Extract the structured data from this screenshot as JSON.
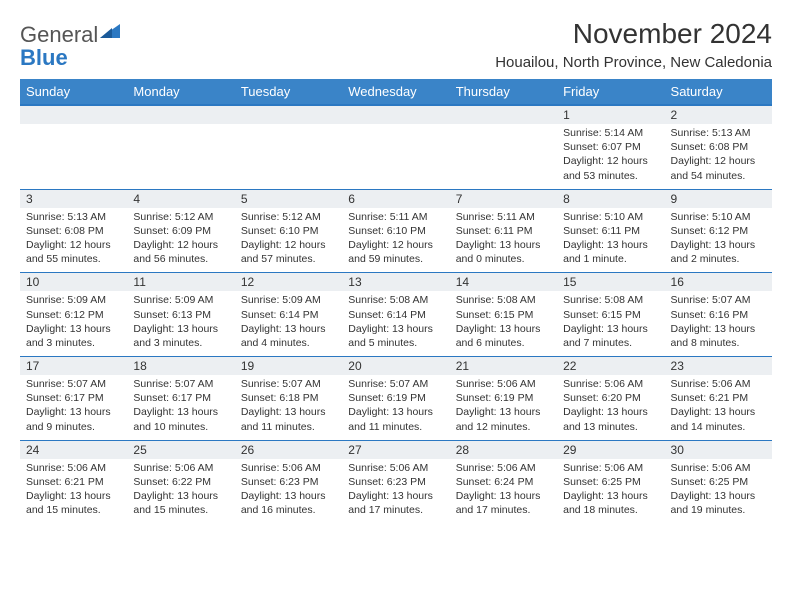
{
  "brand": {
    "name_part1": "General",
    "name_part2": "Blue"
  },
  "title": "November 2024",
  "location": "Houailou, North Province, New Caledonia",
  "colors": {
    "header_bg": "#3a84c8",
    "accent": "#2b78c2",
    "daynum_bg": "#eceff2",
    "text": "#333333",
    "white": "#ffffff"
  },
  "calendar": {
    "type": "table",
    "columns": [
      "Sunday",
      "Monday",
      "Tuesday",
      "Wednesday",
      "Thursday",
      "Friday",
      "Saturday"
    ],
    "weeks": [
      [
        null,
        null,
        null,
        null,
        null,
        {
          "n": "1",
          "sunrise": "5:14 AM",
          "sunset": "6:07 PM",
          "daylight": "12 hours and 53 minutes."
        },
        {
          "n": "2",
          "sunrise": "5:13 AM",
          "sunset": "6:08 PM",
          "daylight": "12 hours and 54 minutes."
        }
      ],
      [
        {
          "n": "3",
          "sunrise": "5:13 AM",
          "sunset": "6:08 PM",
          "daylight": "12 hours and 55 minutes."
        },
        {
          "n": "4",
          "sunrise": "5:12 AM",
          "sunset": "6:09 PM",
          "daylight": "12 hours and 56 minutes."
        },
        {
          "n": "5",
          "sunrise": "5:12 AM",
          "sunset": "6:10 PM",
          "daylight": "12 hours and 57 minutes."
        },
        {
          "n": "6",
          "sunrise": "5:11 AM",
          "sunset": "6:10 PM",
          "daylight": "12 hours and 59 minutes."
        },
        {
          "n": "7",
          "sunrise": "5:11 AM",
          "sunset": "6:11 PM",
          "daylight": "13 hours and 0 minutes."
        },
        {
          "n": "8",
          "sunrise": "5:10 AM",
          "sunset": "6:11 PM",
          "daylight": "13 hours and 1 minute."
        },
        {
          "n": "9",
          "sunrise": "5:10 AM",
          "sunset": "6:12 PM",
          "daylight": "13 hours and 2 minutes."
        }
      ],
      [
        {
          "n": "10",
          "sunrise": "5:09 AM",
          "sunset": "6:12 PM",
          "daylight": "13 hours and 3 minutes."
        },
        {
          "n": "11",
          "sunrise": "5:09 AM",
          "sunset": "6:13 PM",
          "daylight": "13 hours and 3 minutes."
        },
        {
          "n": "12",
          "sunrise": "5:09 AM",
          "sunset": "6:14 PM",
          "daylight": "13 hours and 4 minutes."
        },
        {
          "n": "13",
          "sunrise": "5:08 AM",
          "sunset": "6:14 PM",
          "daylight": "13 hours and 5 minutes."
        },
        {
          "n": "14",
          "sunrise": "5:08 AM",
          "sunset": "6:15 PM",
          "daylight": "13 hours and 6 minutes."
        },
        {
          "n": "15",
          "sunrise": "5:08 AM",
          "sunset": "6:15 PM",
          "daylight": "13 hours and 7 minutes."
        },
        {
          "n": "16",
          "sunrise": "5:07 AM",
          "sunset": "6:16 PM",
          "daylight": "13 hours and 8 minutes."
        }
      ],
      [
        {
          "n": "17",
          "sunrise": "5:07 AM",
          "sunset": "6:17 PM",
          "daylight": "13 hours and 9 minutes."
        },
        {
          "n": "18",
          "sunrise": "5:07 AM",
          "sunset": "6:17 PM",
          "daylight": "13 hours and 10 minutes."
        },
        {
          "n": "19",
          "sunrise": "5:07 AM",
          "sunset": "6:18 PM",
          "daylight": "13 hours and 11 minutes."
        },
        {
          "n": "20",
          "sunrise": "5:07 AM",
          "sunset": "6:19 PM",
          "daylight": "13 hours and 11 minutes."
        },
        {
          "n": "21",
          "sunrise": "5:06 AM",
          "sunset": "6:19 PM",
          "daylight": "13 hours and 12 minutes."
        },
        {
          "n": "22",
          "sunrise": "5:06 AM",
          "sunset": "6:20 PM",
          "daylight": "13 hours and 13 minutes."
        },
        {
          "n": "23",
          "sunrise": "5:06 AM",
          "sunset": "6:21 PM",
          "daylight": "13 hours and 14 minutes."
        }
      ],
      [
        {
          "n": "24",
          "sunrise": "5:06 AM",
          "sunset": "6:21 PM",
          "daylight": "13 hours and 15 minutes."
        },
        {
          "n": "25",
          "sunrise": "5:06 AM",
          "sunset": "6:22 PM",
          "daylight": "13 hours and 15 minutes."
        },
        {
          "n": "26",
          "sunrise": "5:06 AM",
          "sunset": "6:23 PM",
          "daylight": "13 hours and 16 minutes."
        },
        {
          "n": "27",
          "sunrise": "5:06 AM",
          "sunset": "6:23 PM",
          "daylight": "13 hours and 17 minutes."
        },
        {
          "n": "28",
          "sunrise": "5:06 AM",
          "sunset": "6:24 PM",
          "daylight": "13 hours and 17 minutes."
        },
        {
          "n": "29",
          "sunrise": "5:06 AM",
          "sunset": "6:25 PM",
          "daylight": "13 hours and 18 minutes."
        },
        {
          "n": "30",
          "sunrise": "5:06 AM",
          "sunset": "6:25 PM",
          "daylight": "13 hours and 19 minutes."
        }
      ]
    ]
  },
  "labels": {
    "sunrise": "Sunrise: ",
    "sunset": "Sunset: ",
    "daylight": "Daylight: "
  }
}
